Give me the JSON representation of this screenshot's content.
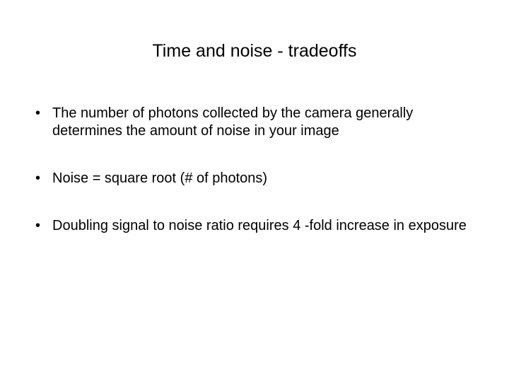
{
  "slide": {
    "title": "Time and noise - tradeoffs",
    "bullets": [
      "The number of photons collected by the camera generally determines the amount of noise in your image",
      "Noise = square root (# of photons)",
      "Doubling signal to noise ratio requires 4 -fold increase in exposure"
    ],
    "bullet_marker": "•"
  },
  "style": {
    "background_color": "#ffffff",
    "text_color": "#000000",
    "title_fontsize": 25,
    "body_fontsize": 20,
    "font_family": "Arial"
  }
}
